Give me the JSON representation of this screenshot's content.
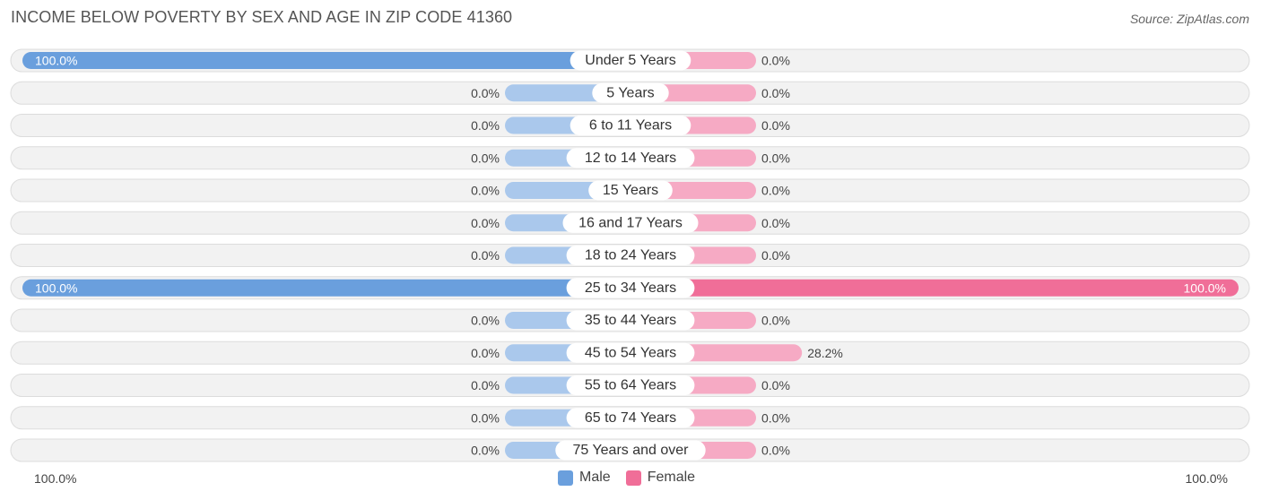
{
  "header": {
    "title": "INCOME BELOW POVERTY BY SEX AND AGE IN ZIP CODE 41360",
    "source": "Source: ZipAtlas.com"
  },
  "axis": {
    "left_label": "100.0%",
    "right_label": "100.0%"
  },
  "legend": {
    "male_label": "Male",
    "female_label": "Female"
  },
  "colors": {
    "male_strong": "#6a9fdd",
    "male_light": "#aac8ec",
    "female_strong": "#f06e98",
    "female_light": "#f6aac4",
    "row_bg": "#f2f2f2",
    "row_border": "#dcdcdc"
  },
  "chart_data": {
    "type": "bar",
    "orientation": "horizontal-diverging",
    "title": "INCOME BELOW POVERTY BY SEX AND AGE IN ZIP CODE 41360",
    "xlim": [
      0,
      100
    ],
    "categories": [
      "Under 5 Years",
      "5 Years",
      "6 to 11 Years",
      "12 to 14 Years",
      "15 Years",
      "16 and 17 Years",
      "18 to 24 Years",
      "25 to 34 Years",
      "35 to 44 Years",
      "45 to 54 Years",
      "55 to 64 Years",
      "65 to 74 Years",
      "75 Years and over"
    ],
    "series": [
      {
        "name": "Male",
        "values": [
          100,
          0,
          0,
          0,
          0,
          0,
          0,
          100,
          0,
          0,
          0,
          0,
          0
        ],
        "labels": [
          "100.0%",
          "0.0%",
          "0.0%",
          "0.0%",
          "0.0%",
          "0.0%",
          "0.0%",
          "100.0%",
          "0.0%",
          "0.0%",
          "0.0%",
          "0.0%",
          "0.0%"
        ]
      },
      {
        "name": "Female",
        "values": [
          0,
          0,
          0,
          0,
          0,
          0,
          0,
          100,
          0,
          28.2,
          0,
          0,
          0
        ],
        "labels": [
          "0.0%",
          "0.0%",
          "0.0%",
          "0.0%",
          "0.0%",
          "0.0%",
          "0.0%",
          "100.0%",
          "0.0%",
          "28.2%",
          "0.0%",
          "0.0%",
          "0.0%"
        ]
      }
    ],
    "legend_position": "bottom-center",
    "grid": false
  }
}
